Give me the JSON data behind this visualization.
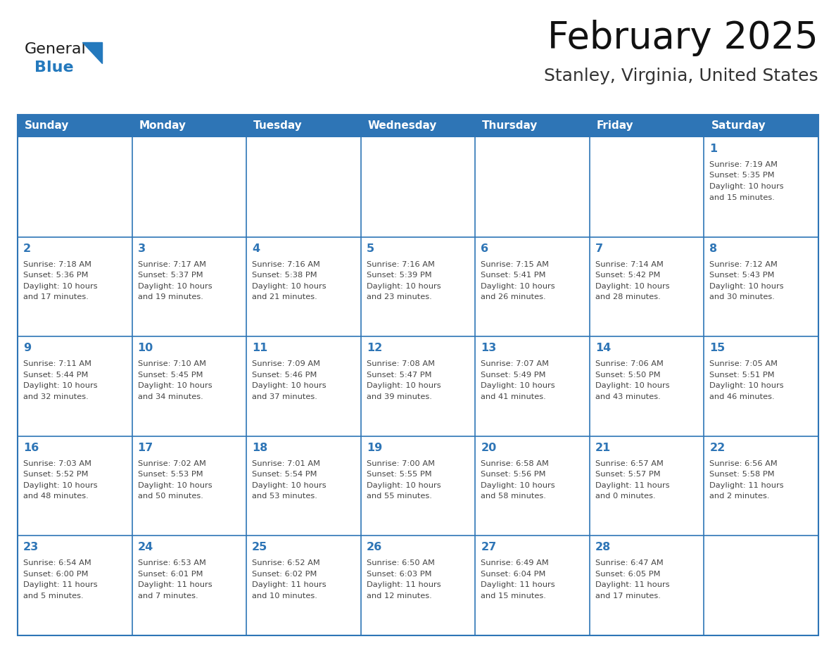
{
  "title": "February 2025",
  "subtitle": "Stanley, Virginia, United States",
  "header_bg": "#2E75B6",
  "header_text_color": "#FFFFFF",
  "cell_bg": "#FFFFFF",
  "cell_border_color": "#2E75B6",
  "day_number_color": "#2E75B6",
  "cell_text_color": "#444444",
  "logo_general_color": "#1a1a1a",
  "logo_blue_color": "#2479BD",
  "days_of_week": [
    "Sunday",
    "Monday",
    "Tuesday",
    "Wednesday",
    "Thursday",
    "Friday",
    "Saturday"
  ],
  "weeks": [
    [
      {
        "day": "",
        "info": ""
      },
      {
        "day": "",
        "info": ""
      },
      {
        "day": "",
        "info": ""
      },
      {
        "day": "",
        "info": ""
      },
      {
        "day": "",
        "info": ""
      },
      {
        "day": "",
        "info": ""
      },
      {
        "day": "1",
        "info": "Sunrise: 7:19 AM\nSunset: 5:35 PM\nDaylight: 10 hours\nand 15 minutes."
      }
    ],
    [
      {
        "day": "2",
        "info": "Sunrise: 7:18 AM\nSunset: 5:36 PM\nDaylight: 10 hours\nand 17 minutes."
      },
      {
        "day": "3",
        "info": "Sunrise: 7:17 AM\nSunset: 5:37 PM\nDaylight: 10 hours\nand 19 minutes."
      },
      {
        "day": "4",
        "info": "Sunrise: 7:16 AM\nSunset: 5:38 PM\nDaylight: 10 hours\nand 21 minutes."
      },
      {
        "day": "5",
        "info": "Sunrise: 7:16 AM\nSunset: 5:39 PM\nDaylight: 10 hours\nand 23 minutes."
      },
      {
        "day": "6",
        "info": "Sunrise: 7:15 AM\nSunset: 5:41 PM\nDaylight: 10 hours\nand 26 minutes."
      },
      {
        "day": "7",
        "info": "Sunrise: 7:14 AM\nSunset: 5:42 PM\nDaylight: 10 hours\nand 28 minutes."
      },
      {
        "day": "8",
        "info": "Sunrise: 7:12 AM\nSunset: 5:43 PM\nDaylight: 10 hours\nand 30 minutes."
      }
    ],
    [
      {
        "day": "9",
        "info": "Sunrise: 7:11 AM\nSunset: 5:44 PM\nDaylight: 10 hours\nand 32 minutes."
      },
      {
        "day": "10",
        "info": "Sunrise: 7:10 AM\nSunset: 5:45 PM\nDaylight: 10 hours\nand 34 minutes."
      },
      {
        "day": "11",
        "info": "Sunrise: 7:09 AM\nSunset: 5:46 PM\nDaylight: 10 hours\nand 37 minutes."
      },
      {
        "day": "12",
        "info": "Sunrise: 7:08 AM\nSunset: 5:47 PM\nDaylight: 10 hours\nand 39 minutes."
      },
      {
        "day": "13",
        "info": "Sunrise: 7:07 AM\nSunset: 5:49 PM\nDaylight: 10 hours\nand 41 minutes."
      },
      {
        "day": "14",
        "info": "Sunrise: 7:06 AM\nSunset: 5:50 PM\nDaylight: 10 hours\nand 43 minutes."
      },
      {
        "day": "15",
        "info": "Sunrise: 7:05 AM\nSunset: 5:51 PM\nDaylight: 10 hours\nand 46 minutes."
      }
    ],
    [
      {
        "day": "16",
        "info": "Sunrise: 7:03 AM\nSunset: 5:52 PM\nDaylight: 10 hours\nand 48 minutes."
      },
      {
        "day": "17",
        "info": "Sunrise: 7:02 AM\nSunset: 5:53 PM\nDaylight: 10 hours\nand 50 minutes."
      },
      {
        "day": "18",
        "info": "Sunrise: 7:01 AM\nSunset: 5:54 PM\nDaylight: 10 hours\nand 53 minutes."
      },
      {
        "day": "19",
        "info": "Sunrise: 7:00 AM\nSunset: 5:55 PM\nDaylight: 10 hours\nand 55 minutes."
      },
      {
        "day": "20",
        "info": "Sunrise: 6:58 AM\nSunset: 5:56 PM\nDaylight: 10 hours\nand 58 minutes."
      },
      {
        "day": "21",
        "info": "Sunrise: 6:57 AM\nSunset: 5:57 PM\nDaylight: 11 hours\nand 0 minutes."
      },
      {
        "day": "22",
        "info": "Sunrise: 6:56 AM\nSunset: 5:58 PM\nDaylight: 11 hours\nand 2 minutes."
      }
    ],
    [
      {
        "day": "23",
        "info": "Sunrise: 6:54 AM\nSunset: 6:00 PM\nDaylight: 11 hours\nand 5 minutes."
      },
      {
        "day": "24",
        "info": "Sunrise: 6:53 AM\nSunset: 6:01 PM\nDaylight: 11 hours\nand 7 minutes."
      },
      {
        "day": "25",
        "info": "Sunrise: 6:52 AM\nSunset: 6:02 PM\nDaylight: 11 hours\nand 10 minutes."
      },
      {
        "day": "26",
        "info": "Sunrise: 6:50 AM\nSunset: 6:03 PM\nDaylight: 11 hours\nand 12 minutes."
      },
      {
        "day": "27",
        "info": "Sunrise: 6:49 AM\nSunset: 6:04 PM\nDaylight: 11 hours\nand 15 minutes."
      },
      {
        "day": "28",
        "info": "Sunrise: 6:47 AM\nSunset: 6:05 PM\nDaylight: 11 hours\nand 17 minutes."
      },
      {
        "day": "",
        "info": ""
      }
    ]
  ]
}
